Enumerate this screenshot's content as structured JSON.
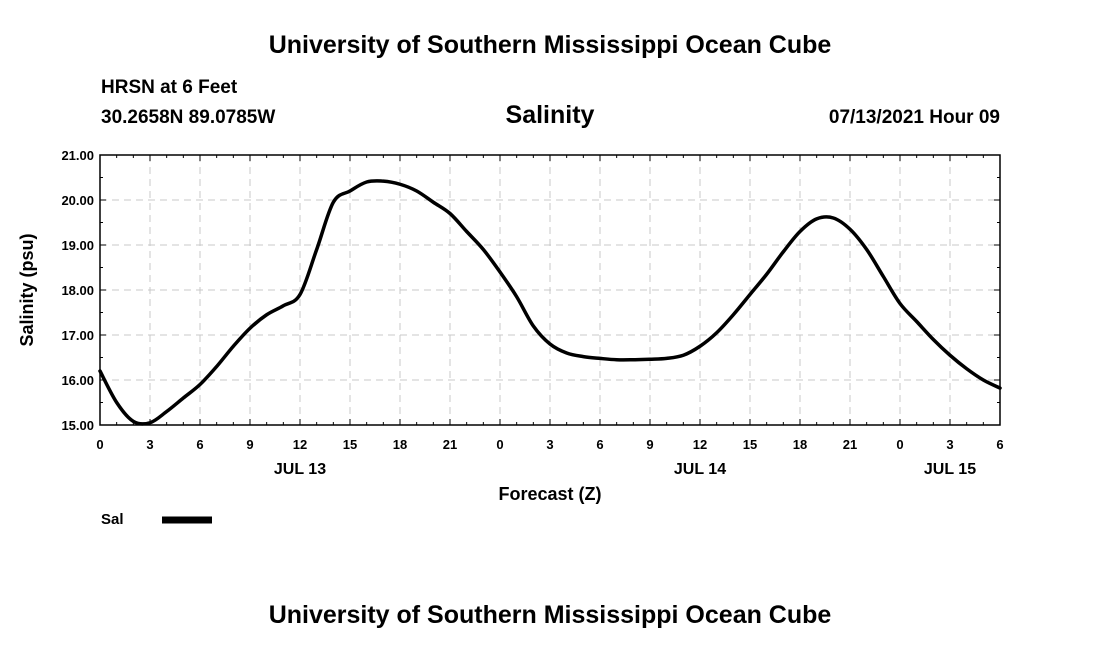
{
  "header": {
    "title": "University of Southern Mississippi Ocean Cube",
    "station": "HRSN at 6 Feet",
    "coords": "30.2658N  89.0785W",
    "date": "07/13/2021 Hour 09"
  },
  "footer": {
    "title": "University of Southern Mississippi Ocean Cube"
  },
  "chart_data": {
    "type": "line",
    "title": "Salinity",
    "xlabel": "Forecast (Z)",
    "ylabel": "Salinity (psu)",
    "xlim": [
      0,
      54
    ],
    "ylim": [
      15,
      21
    ],
    "yticks": [
      "15.00",
      "16.00",
      "17.00",
      "18.00",
      "19.00",
      "20.00",
      "21.00"
    ],
    "xticks": [
      "0",
      "3",
      "6",
      "9",
      "12",
      "15",
      "18",
      "21",
      "0",
      "3",
      "6",
      "9",
      "12",
      "15",
      "18",
      "21",
      "0",
      "3",
      "6"
    ],
    "day_labels": [
      {
        "label": "JUL 13",
        "hour": 12
      },
      {
        "label": "JUL 14",
        "hour": 36
      },
      {
        "label": "JUL 15",
        "hour": 51
      }
    ],
    "grid": true,
    "legend": "bottom-left",
    "line_color": "#000000",
    "series": [
      {
        "name": "Sal",
        "x": [
          0,
          1,
          2,
          3,
          4,
          5,
          6,
          7,
          8,
          9,
          10,
          11,
          12,
          13,
          14,
          15,
          16,
          17,
          18,
          19,
          20,
          21,
          22,
          23,
          24,
          25,
          26,
          27,
          28,
          29,
          30,
          31,
          32,
          33,
          34,
          35,
          36,
          37,
          38,
          39,
          40,
          41,
          42,
          43,
          44,
          45,
          46,
          47,
          48,
          49,
          50,
          51,
          52,
          53,
          54
        ],
        "y": [
          16.2,
          15.5,
          15.08,
          15.05,
          15.3,
          15.6,
          15.9,
          16.3,
          16.75,
          17.15,
          17.45,
          17.65,
          17.9,
          18.9,
          19.95,
          20.2,
          20.4,
          20.42,
          20.35,
          20.2,
          19.95,
          19.7,
          19.3,
          18.9,
          18.4,
          17.85,
          17.2,
          16.8,
          16.6,
          16.52,
          16.48,
          16.45,
          16.45,
          16.46,
          16.48,
          16.55,
          16.75,
          17.05,
          17.45,
          17.9,
          18.35,
          18.85,
          19.3,
          19.58,
          19.6,
          19.35,
          18.9,
          18.3,
          17.7,
          17.3,
          16.9,
          16.55,
          16.25,
          16.0,
          15.82
        ]
      }
    ]
  }
}
